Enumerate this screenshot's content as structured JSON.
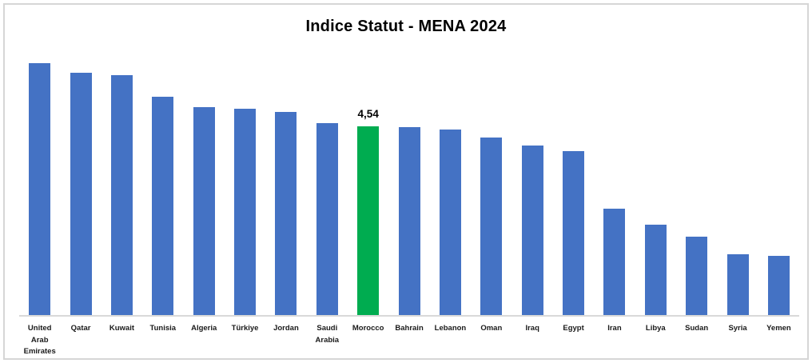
{
  "title": "Indice Statut - MENA 2024",
  "colors": {
    "bar": "#4472C4",
    "highlight": "#00AC50",
    "axis_line": "#D9D9D9",
    "frame_border": "#D6D6D6",
    "label_text": "#1A1A1A",
    "title_text": "#000000"
  },
  "chart_data": {
    "type": "bar",
    "title": "Indice Statut - MENA 2024",
    "categories": [
      "United Arab Emirates",
      "Qatar",
      "Kuwait",
      "Tunisia",
      "Algeria",
      "Türkiye",
      "Jordan",
      "Saudi Arabia",
      "Morocco",
      "Bahrain",
      "Lebanon",
      "Oman",
      "Iraq",
      "Egypt",
      "Iran",
      "Libya",
      "Sudan",
      "Syria",
      "Yemen"
    ],
    "values": [
      6.07,
      5.84,
      5.78,
      5.26,
      5.01,
      4.96,
      4.89,
      4.61,
      4.54,
      4.52,
      4.46,
      4.27,
      4.08,
      3.94,
      2.56,
      2.17,
      1.89,
      1.46,
      1.42
    ],
    "highlight_category": "Morocco",
    "data_labels": [
      {
        "category": "Morocco",
        "text": "4,54",
        "value": 4.54
      }
    ],
    "xlabel": "",
    "ylabel": "",
    "ylim": [
      0,
      6.35
    ],
    "y_axis_visible": false,
    "gridlines": false,
    "legend": "none"
  }
}
